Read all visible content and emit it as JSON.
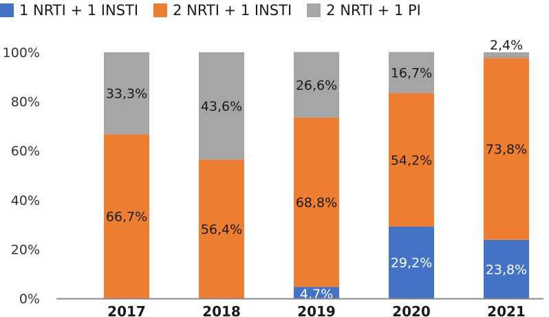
{
  "chart_data": {
    "type": "bar",
    "stacked": true,
    "title": "",
    "xlabel": "",
    "ylabel": "",
    "ylim": [
      0,
      100
    ],
    "yticks": [
      "0%",
      "20%",
      "40%",
      "60%",
      "80%",
      "100%"
    ],
    "ytick_values": [
      0,
      20,
      40,
      60,
      80,
      100
    ],
    "grid": false,
    "legend_position": "top-left",
    "categories": [
      "2017",
      "2018",
      "2019",
      "2020",
      "2021"
    ],
    "series": [
      {
        "name": "1 NRTI + 1 INSTI",
        "color": "#4472C4",
        "label_color": "#ffffff",
        "values": [
          0,
          0,
          4.7,
          29.2,
          23.8
        ],
        "labels": [
          "",
          "",
          "4,7%",
          "29,2%",
          "23,8%"
        ]
      },
      {
        "name": "2 NRTI + 1 INSTI",
        "color": "#ED7D31",
        "label_color": "#1a1a1a",
        "values": [
          66.7,
          56.4,
          68.8,
          54.2,
          73.8
        ],
        "labels": [
          "66,7%",
          "56,4%",
          "68,8%",
          "54,2%",
          "73,8%"
        ]
      },
      {
        "name": "2 NRTI + 1 PI",
        "color": "#A5A5A5",
        "label_color": "#1a1a1a",
        "values": [
          33.3,
          43.6,
          26.6,
          16.7,
          2.4
        ],
        "labels": [
          "33,3%",
          "43,6%",
          "26,6%",
          "16,7%",
          "2,4%"
        ]
      }
    ]
  }
}
